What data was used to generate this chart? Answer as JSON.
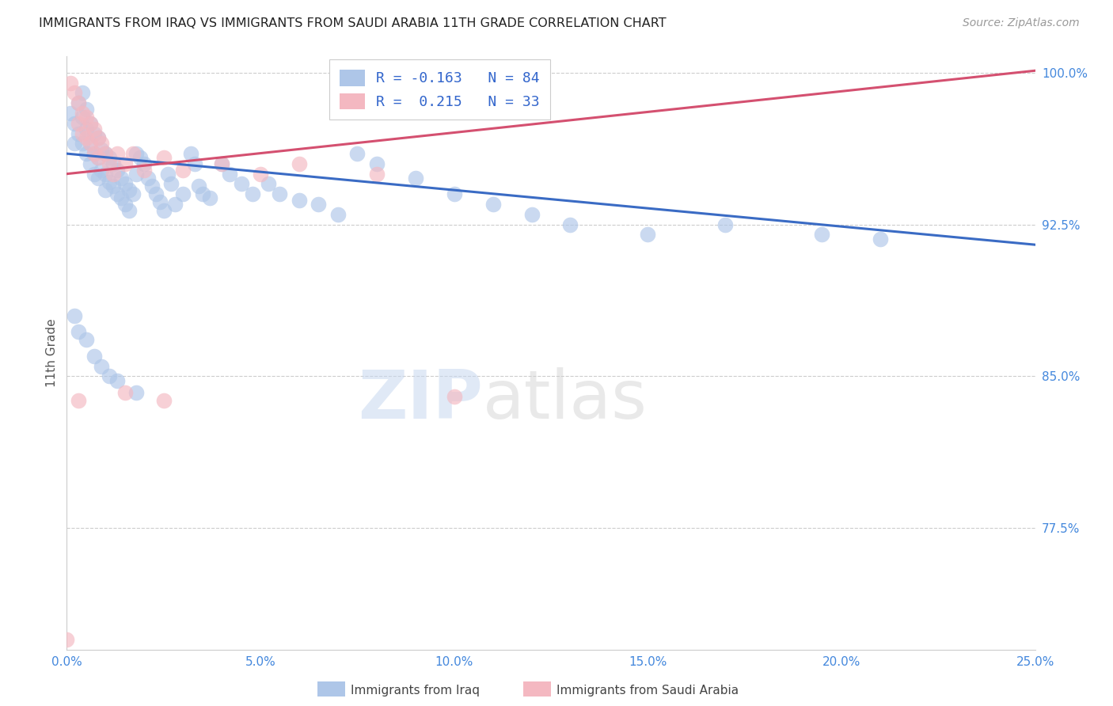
{
  "title": "IMMIGRANTS FROM IRAQ VS IMMIGRANTS FROM SAUDI ARABIA 11TH GRADE CORRELATION CHART",
  "source": "Source: ZipAtlas.com",
  "ylabel": "11th Grade",
  "xlim": [
    0.0,
    0.25
  ],
  "ylim": [
    0.715,
    1.008
  ],
  "xtick_labels": [
    "0.0%",
    "5.0%",
    "10.0%",
    "15.0%",
    "20.0%",
    "25.0%"
  ],
  "xtick_vals": [
    0.0,
    0.05,
    0.1,
    0.15,
    0.2,
    0.25
  ],
  "ytick_labels": [
    "77.5%",
    "85.0%",
    "92.5%",
    "100.0%"
  ],
  "ytick_vals": [
    0.775,
    0.85,
    0.925,
    1.0
  ],
  "iraq_color": "#aec6e8",
  "iraq_line_color": "#3a6bc4",
  "saudi_color": "#f4b8c1",
  "saudi_line_color": "#d45070",
  "iraq_R": -0.163,
  "iraq_N": 84,
  "saudi_R": 0.215,
  "saudi_N": 33,
  "watermark_zip": "ZIP",
  "watermark_atlas": "atlas",
  "background_color": "#ffffff",
  "grid_color": "#cccccc",
  "iraq_line_y0": 0.96,
  "iraq_line_y1": 0.915,
  "saudi_line_y0": 0.95,
  "saudi_line_y1": 1.001,
  "iraq_x": [
    0.001,
    0.002,
    0.002,
    0.003,
    0.003,
    0.004,
    0.004,
    0.004,
    0.005,
    0.005,
    0.005,
    0.006,
    0.006,
    0.006,
    0.007,
    0.007,
    0.007,
    0.008,
    0.008,
    0.008,
    0.009,
    0.009,
    0.01,
    0.01,
    0.01,
    0.011,
    0.011,
    0.012,
    0.012,
    0.013,
    0.013,
    0.014,
    0.014,
    0.015,
    0.015,
    0.016,
    0.016,
    0.017,
    0.018,
    0.018,
    0.019,
    0.02,
    0.021,
    0.022,
    0.023,
    0.024,
    0.025,
    0.026,
    0.027,
    0.028,
    0.03,
    0.032,
    0.033,
    0.034,
    0.035,
    0.037,
    0.04,
    0.042,
    0.045,
    0.048,
    0.052,
    0.055,
    0.06,
    0.065,
    0.07,
    0.075,
    0.08,
    0.09,
    0.1,
    0.11,
    0.12,
    0.13,
    0.15,
    0.17,
    0.195,
    0.21,
    0.002,
    0.003,
    0.005,
    0.007,
    0.009,
    0.011,
    0.013,
    0.018
  ],
  "iraq_y": [
    0.98,
    0.975,
    0.965,
    0.985,
    0.97,
    0.99,
    0.978,
    0.965,
    0.982,
    0.972,
    0.96,
    0.975,
    0.965,
    0.955,
    0.97,
    0.96,
    0.95,
    0.968,
    0.958,
    0.948,
    0.962,
    0.952,
    0.96,
    0.95,
    0.942,
    0.958,
    0.946,
    0.955,
    0.944,
    0.952,
    0.94,
    0.948,
    0.938,
    0.945,
    0.935,
    0.942,
    0.932,
    0.94,
    0.96,
    0.95,
    0.958,
    0.955,
    0.948,
    0.944,
    0.94,
    0.936,
    0.932,
    0.95,
    0.945,
    0.935,
    0.94,
    0.96,
    0.955,
    0.944,
    0.94,
    0.938,
    0.955,
    0.95,
    0.945,
    0.94,
    0.945,
    0.94,
    0.937,
    0.935,
    0.93,
    0.96,
    0.955,
    0.948,
    0.94,
    0.935,
    0.93,
    0.925,
    0.92,
    0.925,
    0.92,
    0.918,
    0.88,
    0.872,
    0.868,
    0.86,
    0.855,
    0.85,
    0.848,
    0.842
  ],
  "saudi_x": [
    0.001,
    0.002,
    0.003,
    0.003,
    0.004,
    0.004,
    0.005,
    0.005,
    0.006,
    0.006,
    0.007,
    0.007,
    0.008,
    0.008,
    0.009,
    0.01,
    0.011,
    0.012,
    0.013,
    0.015,
    0.017,
    0.02,
    0.025,
    0.03,
    0.04,
    0.05,
    0.06,
    0.08,
    0.1,
    0.015,
    0.025,
    0.0,
    0.003
  ],
  "saudi_y": [
    0.995,
    0.99,
    0.985,
    0.975,
    0.98,
    0.97,
    0.978,
    0.968,
    0.975,
    0.965,
    0.972,
    0.96,
    0.968,
    0.958,
    0.965,
    0.96,
    0.955,
    0.95,
    0.96,
    0.955,
    0.96,
    0.952,
    0.958,
    0.952,
    0.955,
    0.95,
    0.955,
    0.95,
    0.84,
    0.842,
    0.838,
    0.72,
    0.838
  ]
}
